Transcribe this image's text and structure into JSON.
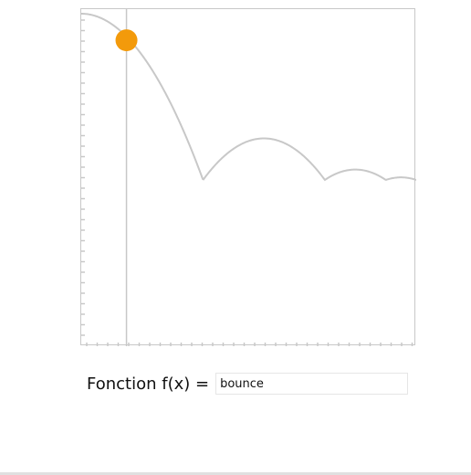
{
  "function_row": {
    "label": "Fonction f(x) =",
    "input_value": "bounce"
  },
  "plot": {
    "curve_function": "bounce",
    "marker_progress": 0.135,
    "colors": {
      "curve": "#c8c8c8",
      "marker": "#f39a0b",
      "ticks": "#c8c8c8",
      "frame": "#c8c8c8"
    }
  }
}
